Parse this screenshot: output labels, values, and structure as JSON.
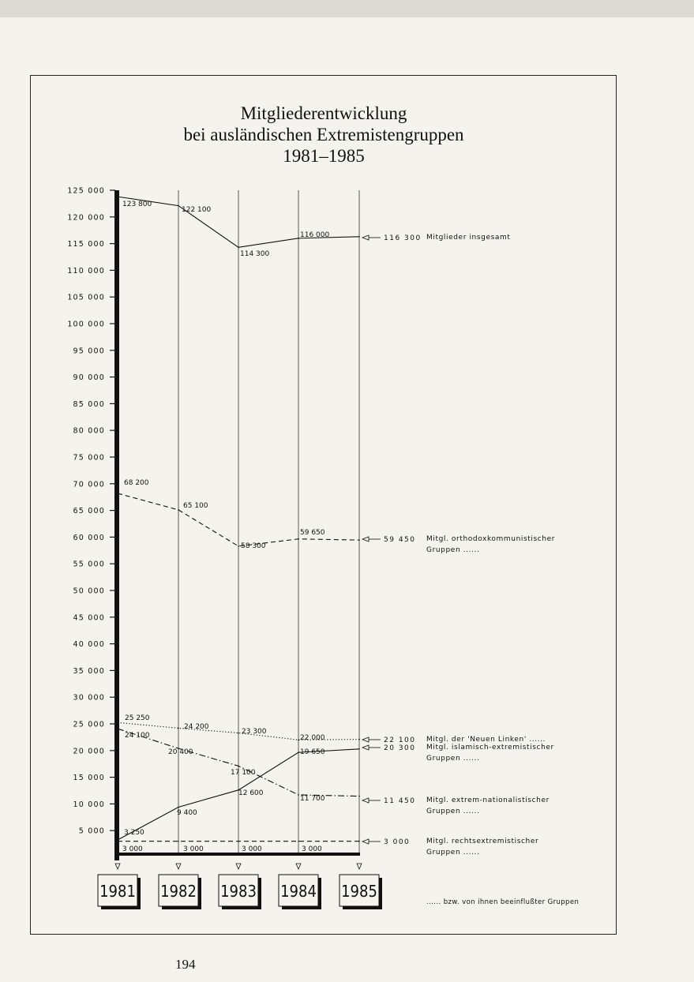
{
  "chart_data": {
    "type": "line",
    "title": [
      "Mitgliederentwicklung",
      "bei ausländischen Extremistengruppen",
      "1981–1985"
    ],
    "categories": [
      "1981",
      "1982",
      "1983",
      "1984",
      "1985"
    ],
    "ylim": [
      0,
      125000
    ],
    "yticks": [
      {
        "value": 5000,
        "label": "5 000"
      },
      {
        "value": 10000,
        "label": "10 000"
      },
      {
        "value": 15000,
        "label": "15 000"
      },
      {
        "value": 20000,
        "label": "20 000"
      },
      {
        "value": 25000,
        "label": "25 000"
      },
      {
        "value": 30000,
        "label": "30 000"
      },
      {
        "value": 35000,
        "label": "35 000"
      },
      {
        "value": 40000,
        "label": "40 000"
      },
      {
        "value": 45000,
        "label": "45 000"
      },
      {
        "value": 50000,
        "label": "50 000"
      },
      {
        "value": 55000,
        "label": "55 000"
      },
      {
        "value": 60000,
        "label": "60 000"
      },
      {
        "value": 65000,
        "label": "65 000"
      },
      {
        "value": 70000,
        "label": "70 000"
      },
      {
        "value": 75000,
        "label": "75 000"
      },
      {
        "value": 80000,
        "label": "80 000"
      },
      {
        "value": 85000,
        "label": "85 000"
      },
      {
        "value": 90000,
        "label": "90 000"
      },
      {
        "value": 95000,
        "label": "95 000"
      },
      {
        "value": 100000,
        "label": "100 000"
      },
      {
        "value": 105000,
        "label": "105 000"
      },
      {
        "value": 110000,
        "label": "110 000"
      },
      {
        "value": 115000,
        "label": "115 000"
      },
      {
        "value": 120000,
        "label": "120 000"
      },
      {
        "value": 125000,
        "label": "125 000"
      }
    ],
    "series": [
      {
        "name": "Mitglieder insgesamt",
        "color": "#111111",
        "dash": "solid",
        "values": [
          123800,
          122100,
          114300,
          116000,
          116300
        ],
        "value_labels": [
          "123 800",
          "122 100",
          "114 300",
          "116 000",
          "116 300"
        ]
      },
      {
        "name": "Mitgl. orthodoxkommunistischer Gruppen ......",
        "color": "#111111",
        "dash": "dashed",
        "values": [
          68200,
          65100,
          58300,
          59650,
          59450
        ],
        "value_labels": [
          "68 200",
          "65 100",
          "58 300",
          "59 650",
          "59 450"
        ]
      },
      {
        "name": "Mitgl. der 'Neuen Linken' ......",
        "color": "#111111",
        "dash": "dotted",
        "values": [
          25250,
          24200,
          23300,
          22000,
          22100
        ],
        "value_labels": [
          "25 250",
          "24 200",
          "23 300",
          "22 000",
          "22 100"
        ]
      },
      {
        "name": "Mitgl. islamisch-extremistischer Gruppen ......",
        "color": "#111111",
        "dash": "solid",
        "values": [
          3250,
          9400,
          12600,
          19650,
          20300
        ],
        "value_labels": [
          "3 250",
          "9 400",
          "12 600",
          "19 650",
          "20 300"
        ]
      },
      {
        "name": "Mitgl. extrem-nationalistischer Gruppen ......",
        "color": "#111111",
        "dash": "dashdot",
        "values": [
          24100,
          20400,
          17100,
          11700,
          11450
        ],
        "value_labels": [
          "24 100",
          "20 400",
          "17 100",
          "11 700",
          "11 450"
        ]
      },
      {
        "name": "Mitgl. rechtsextremistischer Gruppen ......",
        "color": "#111111",
        "dash": "dashed",
        "values": [
          3000,
          3000,
          3000,
          3000,
          3000
        ],
        "value_labels": [
          "3 000",
          "3 000",
          "3 000",
          "3 000",
          "3 000"
        ]
      }
    ]
  },
  "note": "...... bzw. von ihnen beeinflußter Gruppen",
  "page_number": "194"
}
